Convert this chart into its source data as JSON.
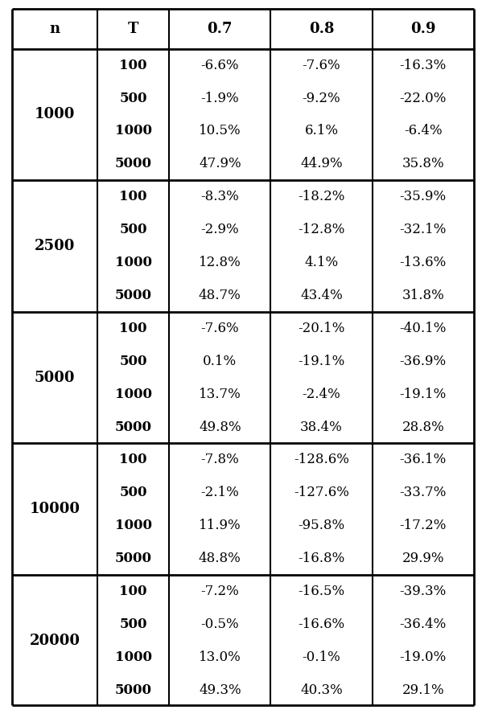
{
  "headers": [
    "n",
    "T",
    "0.7",
    "0.8",
    "0.9"
  ],
  "groups": [
    {
      "n": "1000",
      "rows": [
        {
          "T": "100",
          "v07": "-6.6%",
          "v08": "-7.6%",
          "v09": "-16.3%"
        },
        {
          "T": "500",
          "v07": "-1.9%",
          "v08": "-9.2%",
          "v09": "-22.0%"
        },
        {
          "T": "1000",
          "v07": "10.5%",
          "v08": "6.1%",
          "v09": "-6.4%"
        },
        {
          "T": "5000",
          "v07": "47.9%",
          "v08": "44.9%",
          "v09": "35.8%"
        }
      ]
    },
    {
      "n": "2500",
      "rows": [
        {
          "T": "100",
          "v07": "-8.3%",
          "v08": "-18.2%",
          "v09": "-35.9%"
        },
        {
          "T": "500",
          "v07": "-2.9%",
          "v08": "-12.8%",
          "v09": "-32.1%"
        },
        {
          "T": "1000",
          "v07": "12.8%",
          "v08": "4.1%",
          "v09": "-13.6%"
        },
        {
          "T": "5000",
          "v07": "48.7%",
          "v08": "43.4%",
          "v09": "31.8%"
        }
      ]
    },
    {
      "n": "5000",
      "rows": [
        {
          "T": "100",
          "v07": "-7.6%",
          "v08": "-20.1%",
          "v09": "-40.1%"
        },
        {
          "T": "500",
          "v07": "0.1%",
          "v08": "-19.1%",
          "v09": "-36.9%"
        },
        {
          "T": "1000",
          "v07": "13.7%",
          "v08": "-2.4%",
          "v09": "-19.1%"
        },
        {
          "T": "5000",
          "v07": "49.8%",
          "v08": "38.4%",
          "v09": "28.8%"
        }
      ]
    },
    {
      "n": "10000",
      "rows": [
        {
          "T": "100",
          "v07": "-7.8%",
          "v08": "-128.6%",
          "v09": "-36.1%"
        },
        {
          "T": "500",
          "v07": "-2.1%",
          "v08": "-127.6%",
          "v09": "-33.7%"
        },
        {
          "T": "1000",
          "v07": "11.9%",
          "v08": "-95.8%",
          "v09": "-17.2%"
        },
        {
          "T": "5000",
          "v07": "48.8%",
          "v08": "-16.8%",
          "v09": "29.9%"
        }
      ]
    },
    {
      "n": "20000",
      "rows": [
        {
          "T": "100",
          "v07": "-7.2%",
          "v08": "-16.5%",
          "v09": "-39.3%"
        },
        {
          "T": "500",
          "v07": "-0.5%",
          "v08": "-16.6%",
          "v09": "-36.4%"
        },
        {
          "T": "1000",
          "v07": "13.0%",
          "v08": "-0.1%",
          "v09": "-19.0%"
        },
        {
          "T": "5000",
          "v07": "49.3%",
          "v08": "40.3%",
          "v09": "29.1%"
        }
      ]
    }
  ],
  "bg_color": "#ffffff",
  "border_color": "#000000",
  "text_color": "#000000",
  "figsize": [
    6.04,
    8.88
  ],
  "dpi": 100
}
